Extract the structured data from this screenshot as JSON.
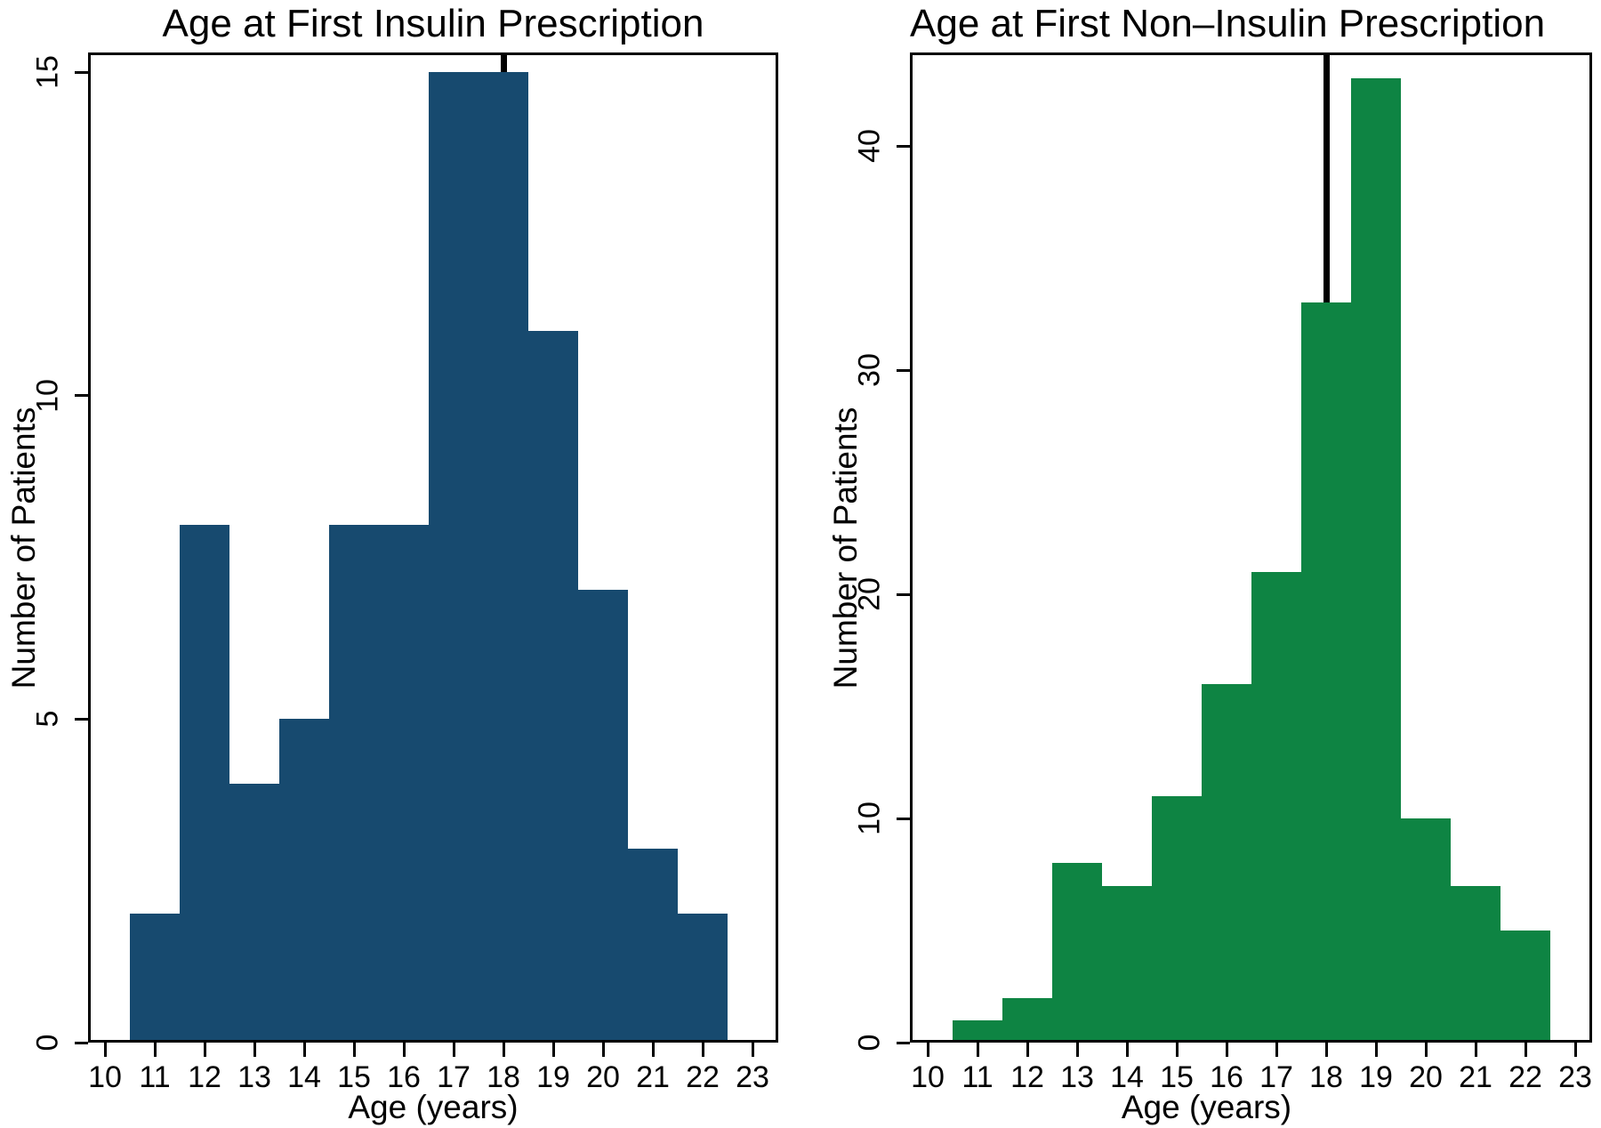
{
  "figure": {
    "background_color": "#ffffff",
    "axis_color": "#000000",
    "text_color": "#000000"
  },
  "chart_data": [
    {
      "type": "bar",
      "subtype": "histogram",
      "title": "Age at First Insulin Prescription",
      "xlabel": "Age (years)",
      "ylabel": "Number of Patients",
      "bar_color": "#174a6f",
      "median_line_color": "#000000",
      "bin_width": 1,
      "bin_edges": [
        10.5,
        11.5,
        12.5,
        13.5,
        14.5,
        15.5,
        16.5,
        17.5,
        18.5,
        19.5,
        20.5,
        21.5,
        22.5
      ],
      "counts": [
        2,
        8,
        4,
        5,
        8,
        8,
        15,
        15,
        11,
        7,
        3,
        2
      ],
      "median_line_x": 18,
      "x_ticks": [
        10,
        11,
        12,
        13,
        14,
        15,
        16,
        17,
        18,
        19,
        20,
        21,
        22,
        23
      ],
      "y_ticks": [
        0,
        5,
        10,
        15
      ],
      "xlim": [
        9.7,
        23.5
      ],
      "ylim": [
        0,
        15.3
      ],
      "grid": false,
      "legend": null
    },
    {
      "type": "bar",
      "subtype": "histogram",
      "title": "Age at First Non–Insulin Prescription",
      "xlabel": "Age (years)",
      "ylabel": "Number of Patients",
      "bar_color": "#0e8443",
      "median_line_color": "#000000",
      "bin_width": 1,
      "bin_edges": [
        10.5,
        11.5,
        12.5,
        13.5,
        14.5,
        15.5,
        16.5,
        17.5,
        18.5,
        19.5,
        20.5,
        21.5,
        22.5
      ],
      "counts": [
        1,
        2,
        8,
        7,
        11,
        16,
        21,
        33,
        43,
        10,
        7,
        5
      ],
      "median_line_x": 18,
      "x_ticks": [
        10,
        11,
        12,
        13,
        14,
        15,
        16,
        17,
        18,
        19,
        20,
        21,
        22,
        23
      ],
      "y_ticks": [
        0,
        10,
        20,
        30,
        40
      ],
      "xlim": [
        9.7,
        23.5
      ],
      "ylim": [
        0,
        44.2
      ],
      "grid": false,
      "legend": null
    }
  ]
}
